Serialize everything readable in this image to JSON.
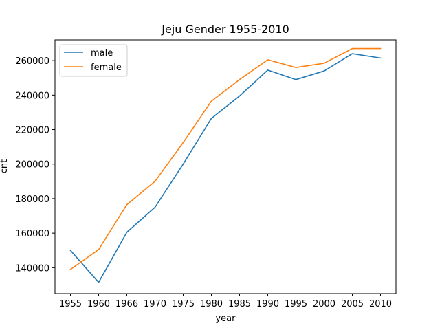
{
  "chart_data": {
    "type": "line",
    "title": "Jeju Gender 1955-2010",
    "xlabel": "year",
    "ylabel": "cnt",
    "categories": [
      "1955",
      "1960",
      "1966",
      "1970",
      "1975",
      "1980",
      "1985",
      "1990",
      "1995",
      "2000",
      "2005",
      "2010"
    ],
    "ylim": [
      125000,
      272000
    ],
    "yticks": [
      140000,
      160000,
      180000,
      200000,
      220000,
      240000,
      260000
    ],
    "ytick_labels": [
      "140000",
      "160000",
      "180000",
      "200000",
      "220000",
      "240000",
      "260000"
    ],
    "grid": false,
    "legend_position": "upper-left",
    "series": [
      {
        "name": "male",
        "color": "#1f77b4",
        "values": [
          150000,
          131500,
          160500,
          175000,
          200000,
          226500,
          239500,
          254500,
          249000,
          254000,
          264000,
          261500
        ]
      },
      {
        "name": "female",
        "color": "#ff7f0e",
        "values": [
          139000,
          150500,
          176500,
          190000,
          212500,
          236500,
          249000,
          260500,
          256000,
          258500,
          267000,
          267000
        ]
      }
    ]
  }
}
